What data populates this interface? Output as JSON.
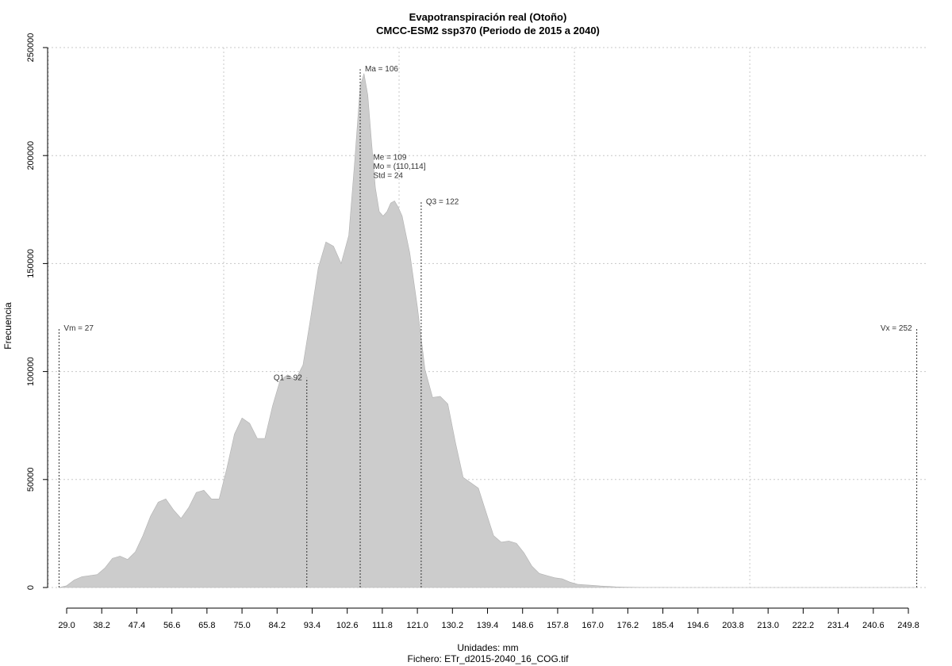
{
  "chart_data": {
    "type": "area",
    "title": "Evapotranspiración real (Otoño)",
    "subtitle": "CMCC-ESM2 ssp370 (Periodo de 2015 a 2040)",
    "xlabel": "Unidades: mm",
    "ylabel": "Frecuencia",
    "footer": "Fichero: ETr_d2015-2040_16_COG.tif",
    "xlim": [
      24,
      255
    ],
    "ylim": [
      0,
      250000
    ],
    "x_ticks": [
      29.0,
      38.2,
      47.4,
      56.6,
      65.8,
      75.0,
      84.2,
      93.4,
      102.6,
      111.8,
      121.0,
      130.2,
      139.4,
      148.6,
      157.8,
      167.0,
      176.2,
      185.4,
      194.6,
      203.8,
      213.0,
      222.2,
      231.4,
      240.6,
      249.8
    ],
    "x_tick_labels": [
      "29.0",
      "38.2",
      "47.4",
      "56.6",
      "65.8",
      "75.0",
      "84.2",
      "93.4",
      "102.6",
      "111.8",
      "121.0",
      "130.2",
      "139.4",
      "148.6",
      "157.8",
      "167.0",
      "176.2",
      "185.4",
      "194.6",
      "203.8",
      "213.0",
      "222.2",
      "231.4",
      "240.6",
      "249.8"
    ],
    "y_ticks": [
      0,
      50000,
      100000,
      150000,
      200000,
      250000
    ],
    "y_tick_labels": [
      "0",
      "50000",
      "100000",
      "150000",
      "200000",
      "250000"
    ],
    "grid": true,
    "fill_color": "#cccccc",
    "grid_color": "#c8c8c8",
    "series": [
      {
        "x": [
          27.0,
          29.0,
          31.0,
          33.0,
          35.0,
          37.0,
          39.0,
          41.0,
          43.0,
          45.0,
          47.0,
          49.0,
          51.0,
          53.0,
          55.0,
          57.0,
          59.0,
          61.0,
          63.0,
          65.0,
          67.0,
          69.0,
          71.0,
          73.0,
          75.0,
          77.0,
          79.0,
          81.0,
          83.0,
          85.0,
          87.0,
          89.0,
          91.0,
          93.0,
          95.0,
          97.0,
          99.0,
          101.0,
          103.0,
          104.5,
          106.0,
          107.0,
          108.0,
          109.0,
          110.0,
          111.0,
          112.0,
          113.0,
          114.0,
          115.0,
          116.0,
          117.0,
          119.0,
          121.0,
          123.0,
          125.0,
          127.0,
          129.0,
          131.0,
          133.0,
          135.0,
          137.0,
          139.0,
          141.0,
          143.0,
          145.0,
          147.0,
          149.0,
          151.0,
          153.0,
          155.0,
          157.0,
          159.0,
          161.0,
          163.0,
          165.0,
          167.0,
          169.0,
          171.0,
          173.0,
          175.0,
          177.0,
          180.0,
          185.0,
          190.0,
          200.0,
          215.0,
          230.0,
          245.0,
          252.0
        ],
        "y": [
          0,
          800,
          3500,
          5000,
          5500,
          6000,
          9000,
          13500,
          14500,
          13000,
          16500,
          24000,
          33000,
          39500,
          41000,
          36000,
          32000,
          37000,
          44000,
          45000,
          41000,
          41000,
          55000,
          71000,
          78500,
          76000,
          69000,
          69000,
          84000,
          96000,
          98500,
          96000,
          103000,
          125000,
          148000,
          160000,
          158000,
          150000,
          163000,
          196000,
          232000,
          238000,
          228000,
          206000,
          185000,
          174000,
          172000,
          174000,
          178000,
          179000,
          176000,
          172000,
          155000,
          130000,
          101000,
          88000,
          88500,
          85000,
          67000,
          51000,
          48500,
          46000,
          35000,
          24000,
          21000,
          21500,
          20500,
          16000,
          10000,
          6500,
          5500,
          4500,
          4000,
          2500,
          1500,
          1200,
          1000,
          700,
          500,
          300,
          200,
          100,
          50,
          20,
          10,
          5,
          3,
          2,
          1,
          0
        ]
      }
    ],
    "markers": [
      {
        "id": "vm",
        "label": "Vm = 27",
        "x": 27,
        "y_top": 120000,
        "label_side": "right",
        "label_y": 120500
      },
      {
        "id": "q1",
        "label": "Q1 = 92",
        "x": 92,
        "y_top": 97000,
        "label_side": "left",
        "label_y": 97500
      },
      {
        "id": "ma",
        "label": "Ma = 106",
        "x": 106,
        "y_top": 240000,
        "label_side": "right",
        "label_y": 240500
      },
      {
        "id": "q3",
        "label": "Q3 = 122",
        "x": 122,
        "y_top": 179000,
        "label_side": "right",
        "label_y": 179000
      },
      {
        "id": "vx",
        "label": "Vx = 252",
        "x": 252,
        "y_top": 120000,
        "label_side": "left",
        "label_y": 120500
      }
    ],
    "stats_block": [
      "Me = 109",
      "Mo = (110,114]",
      "Std = 24"
    ]
  }
}
